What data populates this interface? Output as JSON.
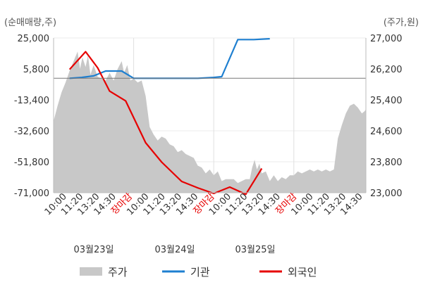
{
  "chart_data": {
    "type": "line",
    "left_axis_unit": "(순매매량,주)",
    "right_axis_unit": "(주가,원)",
    "y_left_ticks": [
      "25,000",
      "5,800",
      "-13,400",
      "-32,600",
      "-51,800",
      "-71,000"
    ],
    "y_left_values": [
      25000,
      5800,
      -13400,
      -32600,
      -51800,
      -71000
    ],
    "y_right_ticks": [
      "27,000",
      "26,200",
      "25,400",
      "24,600",
      "23,800",
      "23,000"
    ],
    "y_right_values": [
      27000,
      26200,
      25400,
      24600,
      23800,
      23000
    ],
    "ylim_left": [
      -71000,
      25000
    ],
    "ylim_right": [
      23000,
      27000
    ],
    "x_tick_labels": [
      {
        "text": "10:00",
        "color": "#333333"
      },
      {
        "text": "11:20",
        "color": "#333333"
      },
      {
        "text": "13:20",
        "color": "#333333"
      },
      {
        "text": "14:30",
        "color": "#333333"
      },
      {
        "text": "장마감",
        "color": "#e60000"
      },
      {
        "text": "10:00",
        "color": "#333333"
      },
      {
        "text": "11:20",
        "color": "#333333"
      },
      {
        "text": "13:20",
        "color": "#333333"
      },
      {
        "text": "14:30",
        "color": "#333333"
      },
      {
        "text": "장마감",
        "color": "#e60000"
      },
      {
        "text": "10:00",
        "color": "#333333"
      },
      {
        "text": "11:20",
        "color": "#333333"
      },
      {
        "text": "13:20",
        "color": "#333333"
      },
      {
        "text": "14:30",
        "color": "#333333"
      },
      {
        "text": "장마감",
        "color": "#e60000"
      },
      {
        "text": "10:00",
        "color": "#333333"
      },
      {
        "text": "11:20",
        "color": "#333333"
      },
      {
        "text": "13:20",
        "color": "#333333"
      },
      {
        "text": "14:30",
        "color": "#333333"
      }
    ],
    "date_labels": [
      "03월23일",
      "03월24일",
      "03월25일"
    ],
    "baseline_value_left": 0,
    "legend": [
      {
        "name": "주가",
        "kind": "area",
        "color": "#c8c8c8"
      },
      {
        "name": "기관",
        "kind": "line",
        "color": "#1e7fd0"
      },
      {
        "name": "외국인",
        "kind": "line",
        "color": "#e60000"
      }
    ],
    "series": [
      {
        "name": "주가",
        "axis": "right",
        "type": "area",
        "color": "#c8c8c8",
        "points": [
          [
            0.0,
            24850
          ],
          [
            0.5,
            25250
          ],
          [
            1.0,
            25600
          ],
          [
            1.5,
            25850
          ],
          [
            2.0,
            26150
          ],
          [
            2.5,
            26400
          ],
          [
            3.0,
            26650
          ],
          [
            3.3,
            26200
          ],
          [
            3.6,
            26500
          ],
          [
            4.0,
            26250
          ],
          [
            4.3,
            26550
          ],
          [
            4.6,
            26050
          ],
          [
            5.0,
            26300
          ],
          [
            5.5,
            26000
          ],
          [
            6.0,
            25950
          ],
          [
            6.5,
            25900
          ],
          [
            7.0,
            26100
          ],
          [
            7.5,
            25900
          ],
          [
            8.0,
            26200
          ],
          [
            8.5,
            26400
          ],
          [
            8.8,
            26100
          ],
          [
            9.2,
            26300
          ],
          [
            9.6,
            25900
          ],
          [
            10.0,
            25950
          ],
          [
            10.5,
            25850
          ],
          [
            11.0,
            25900
          ],
          [
            11.5,
            25500
          ],
          [
            12.0,
            24700
          ],
          [
            12.5,
            24500
          ],
          [
            13.0,
            24350
          ],
          [
            13.5,
            24450
          ],
          [
            14.0,
            24400
          ],
          [
            14.5,
            24250
          ],
          [
            15.0,
            24200
          ],
          [
            15.5,
            24050
          ],
          [
            16.0,
            24100
          ],
          [
            16.5,
            24000
          ],
          [
            17.0,
            23950
          ],
          [
            17.5,
            23900
          ],
          [
            18.0,
            23700
          ],
          [
            18.5,
            23650
          ],
          [
            19.0,
            23500
          ],
          [
            19.5,
            23600
          ],
          [
            20.0,
            23450
          ],
          [
            20.5,
            23550
          ],
          [
            21.0,
            23300
          ],
          [
            21.5,
            23350
          ],
          [
            22.0,
            23350
          ],
          [
            22.5,
            23350
          ],
          [
            23.0,
            23250
          ],
          [
            23.5,
            23300
          ],
          [
            24.0,
            23350
          ],
          [
            24.5,
            23350
          ],
          [
            24.8,
            23650
          ],
          [
            25.1,
            23850
          ],
          [
            25.4,
            23600
          ],
          [
            25.7,
            23750
          ],
          [
            26.0,
            23500
          ],
          [
            26.5,
            23550
          ],
          [
            27.0,
            23300
          ],
          [
            27.5,
            23450
          ],
          [
            28.0,
            23300
          ],
          [
            28.5,
            23400
          ],
          [
            29.0,
            23350
          ],
          [
            29.5,
            23450
          ],
          [
            30.0,
            23450
          ],
          [
            30.5,
            23550
          ],
          [
            31.0,
            23500
          ],
          [
            31.5,
            23550
          ],
          [
            32.0,
            23600
          ],
          [
            32.5,
            23550
          ],
          [
            33.0,
            23600
          ],
          [
            33.5,
            23550
          ],
          [
            34.0,
            23600
          ],
          [
            34.5,
            23550
          ],
          [
            35.0,
            23600
          ],
          [
            35.5,
            24400
          ],
          [
            36.0,
            24750
          ],
          [
            36.5,
            25050
          ],
          [
            37.0,
            25250
          ],
          [
            37.5,
            25300
          ],
          [
            38.0,
            25200
          ],
          [
            38.5,
            25050
          ],
          [
            38.8,
            25100
          ],
          [
            39.0,
            25150
          ]
        ]
      },
      {
        "name": "기관",
        "axis": "left",
        "type": "line",
        "color": "#1e7fd0",
        "points": [
          [
            2.0,
            0
          ],
          [
            3.5,
            500
          ],
          [
            5.0,
            1500
          ],
          [
            6.5,
            4500
          ],
          [
            8.5,
            4500
          ],
          [
            10.0,
            0
          ],
          [
            12.0,
            0
          ],
          [
            14.0,
            0
          ],
          [
            16.0,
            0
          ],
          [
            18.0,
            0
          ],
          [
            20.0,
            500
          ],
          [
            21.0,
            1000
          ],
          [
            23.0,
            24000
          ],
          [
            25.0,
            24000
          ],
          [
            27.0,
            24500
          ]
        ]
      },
      {
        "name": "외국인",
        "axis": "left",
        "type": "line",
        "color": "#e60000",
        "points": [
          [
            2.0,
            5500
          ],
          [
            4.0,
            16500
          ],
          [
            5.5,
            6500
          ],
          [
            7.0,
            -8000
          ],
          [
            9.0,
            -14000
          ],
          [
            11.5,
            -40000
          ],
          [
            13.5,
            -52000
          ],
          [
            16.0,
            -64000
          ],
          [
            18.0,
            -68000
          ],
          [
            20.0,
            -71500
          ],
          [
            22.0,
            -67500
          ],
          [
            24.0,
            -72000
          ],
          [
            26.0,
            -56000
          ]
        ]
      }
    ]
  }
}
